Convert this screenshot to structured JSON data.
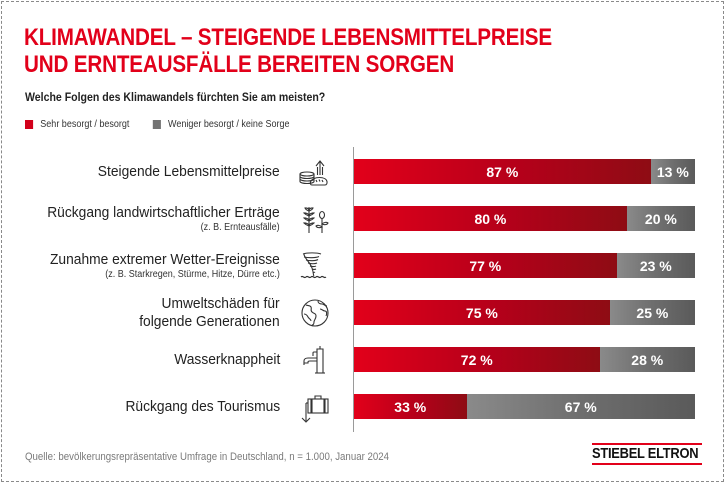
{
  "title": {
    "line1": "KLIMAWANDEL – STEIGENDE LEBENSMITTELPREISE",
    "line2": "UND ERNTEAUSFÄLLE BEREITEN SORGEN"
  },
  "question": "Welche Folgen des Klimawandels fürchten Sie am meisten?",
  "colors": {
    "accent": "#e2001a",
    "concerned": "#c8001a",
    "not_concerned": "#6e6e6e"
  },
  "chart_data": {
    "type": "bar",
    "orientation": "horizontal",
    "stacked": true,
    "title": "KLIMAWANDEL – STEIGENDE LEBENSMITTELPREISE UND ERNTEAUSFÄLLE BEREITEN SORGEN",
    "subtitle": "Welche Folgen des Klimawandels fürchten Sie am meisten?",
    "legend": {
      "position": "top-left",
      "entries": [
        "Sehr besorgt / besorgt",
        "Weniger besorgt / keine Sorge"
      ]
    },
    "categories": [
      {
        "label": "Steigende Lebensmittelpreise",
        "sub": "",
        "icon": "bread-price-rise-icon"
      },
      {
        "label": "Rückgang landwirtschaftlicher Erträge",
        "sub": "(z. B. Ernteausfälle)",
        "icon": "crop-plant-icon"
      },
      {
        "label": "Zunahme extremer Wetter-Ereignisse",
        "sub": "(z. B. Starkregen, Stürme, Hitze, Dürre etc.)",
        "icon": "tornado-icon"
      },
      {
        "label": "Umweltschäden für\nfolgende Generationen",
        "sub": "",
        "icon": "globe-icon"
      },
      {
        "label": "Wasserknappheit",
        "sub": "",
        "icon": "water-tap-icon"
      },
      {
        "label": "Rückgang des Tourismus",
        "sub": "",
        "icon": "suitcase-down-icon"
      }
    ],
    "series": [
      {
        "name": "Sehr besorgt / besorgt",
        "values": [
          87,
          80,
          77,
          75,
          72,
          33
        ]
      },
      {
        "name": "Weniger besorgt / keine Sorge",
        "values": [
          13,
          20,
          23,
          25,
          28,
          67
        ]
      }
    ],
    "value_suffix": " %",
    "xlim": [
      0,
      100
    ],
    "grid": false
  },
  "source": "Quelle: bevölkerungsrepräsentative Umfrage in Deutschland, n = 1.000, Januar 2024",
  "logo": "STIEBEL ELTRON"
}
